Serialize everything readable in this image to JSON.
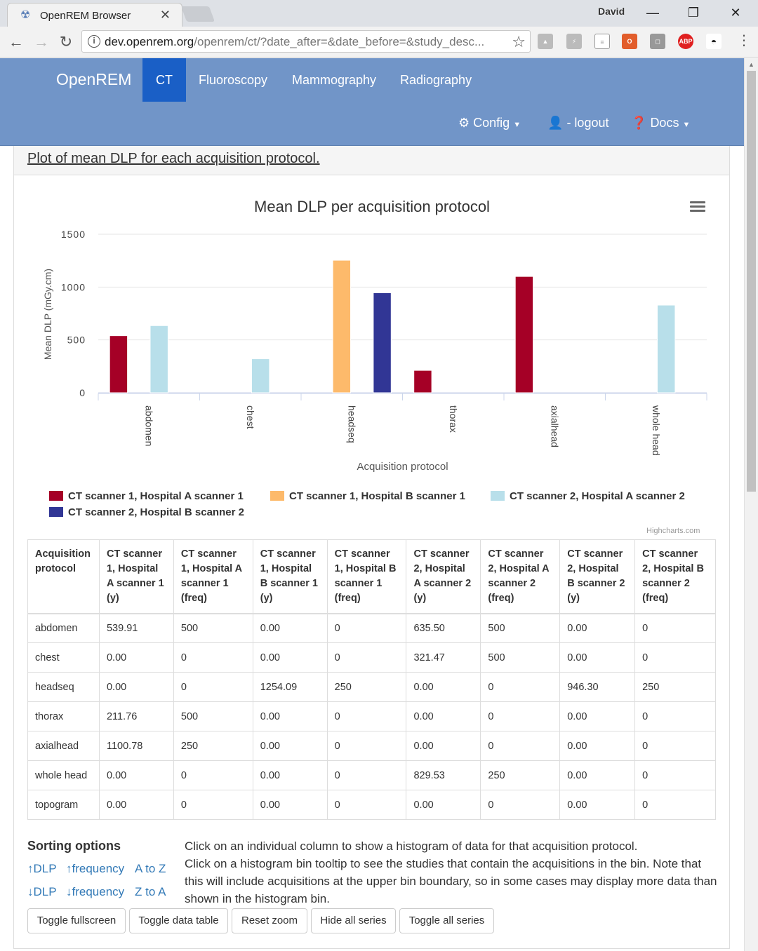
{
  "browser": {
    "tab_title": "OpenREM Browser",
    "profile": "David",
    "url_host": "dev.openrem.org",
    "url_path": "/openrem/ct/?date_after=&date_before=&study_desc...",
    "extensions": [
      "drive-icon",
      "pdf-icon",
      "doc-icon",
      "office-icon",
      "box-icon",
      "adblock-icon",
      "spy-icon"
    ],
    "adblock_label": "ABP"
  },
  "nav": {
    "brand": "OpenREM",
    "items": [
      {
        "label": "CT",
        "active": true
      },
      {
        "label": "Fluoroscopy",
        "active": false
      },
      {
        "label": "Mammography",
        "active": false
      },
      {
        "label": "Radiography",
        "active": false
      }
    ],
    "config": "Config",
    "logout": "- logout",
    "docs": "Docs"
  },
  "panel": {
    "heading": "Plot of mean DLP for each acquisition protocol."
  },
  "chart_data": {
    "type": "bar",
    "title": "Mean DLP per acquisition protocol",
    "xlabel": "Acquisition protocol",
    "ylabel": "Mean DLP (mGy.cm)",
    "ylim": [
      0,
      1500
    ],
    "yticks": [
      0,
      500,
      1000,
      1500
    ],
    "categories": [
      "abdomen",
      "chest",
      "headseq",
      "thorax",
      "axialhead",
      "whole head"
    ],
    "grid": true,
    "legend_position": "bottom",
    "series": [
      {
        "name": "CT scanner 1, Hospital A scanner 1",
        "color": "#a50026",
        "values": [
          539.91,
          0,
          0,
          211.76,
          1100.78,
          0
        ]
      },
      {
        "name": "CT scanner 1, Hospital B scanner 1",
        "color": "#fdba6b",
        "values": [
          0,
          0,
          1254.09,
          0,
          0,
          0
        ]
      },
      {
        "name": "CT scanner 2, Hospital A scanner 2",
        "color": "#b8dfea",
        "values": [
          635.5,
          321.47,
          0,
          0,
          0,
          829.53
        ]
      },
      {
        "name": "CT scanner 2, Hospital B scanner 2",
        "color": "#313695",
        "values": [
          0,
          0,
          946.3,
          0,
          0,
          0
        ]
      }
    ],
    "credits": "Highcharts.com"
  },
  "table": {
    "headers": [
      "Acquisition protocol",
      "CT scanner 1, Hospital A scanner 1 (y)",
      "CT scanner 1, Hospital A scanner 1 (freq)",
      "CT scanner 1, Hospital B scanner 1 (y)",
      "CT scanner 1, Hospital B scanner 1 (freq)",
      "CT scanner 2, Hospital A scanner 2 (y)",
      "CT scanner 2, Hospital A scanner 2 (freq)",
      "CT scanner 2, Hospital B scanner 2 (y)",
      "CT scanner 2, Hospital B scanner 2 (freq)"
    ],
    "rows": [
      [
        "abdomen",
        "539.91",
        "500",
        "0.00",
        "0",
        "635.50",
        "500",
        "0.00",
        "0"
      ],
      [
        "chest",
        "0.00",
        "0",
        "0.00",
        "0",
        "321.47",
        "500",
        "0.00",
        "0"
      ],
      [
        "headseq",
        "0.00",
        "0",
        "1254.09",
        "250",
        "0.00",
        "0",
        "946.30",
        "250"
      ],
      [
        "thorax",
        "211.76",
        "500",
        "0.00",
        "0",
        "0.00",
        "0",
        "0.00",
        "0"
      ],
      [
        "axialhead",
        "1100.78",
        "250",
        "0.00",
        "0",
        "0.00",
        "0",
        "0.00",
        "0"
      ],
      [
        "whole head",
        "0.00",
        "0",
        "0.00",
        "0",
        "829.53",
        "250",
        "0.00",
        "0"
      ],
      [
        "topogram",
        "0.00",
        "0",
        "0.00",
        "0",
        "0.00",
        "0",
        "0.00",
        "0"
      ]
    ]
  },
  "sorting": {
    "title": "Sorting options",
    "dlp_asc": "↑DLP",
    "freq_asc": "↑frequency",
    "a_to_z": "A to Z",
    "dlp_desc": "↓DLP",
    "freq_desc": "↓frequency",
    "z_to_a": "Z to A"
  },
  "help": {
    "line1": "Click on an individual column to show a histogram of data for that acquisition protocol.",
    "line2": "Click on a histogram bin tooltip to see the studies that contain the acquisitions in the bin. Note that this will include acquisitions at the upper bin boundary, so in some cases may display more data than shown in the histogram bin."
  },
  "buttons": {
    "fullscreen": "Toggle fullscreen",
    "data_table": "Toggle data table",
    "reset_zoom": "Reset zoom",
    "hide_all": "Hide all series",
    "toggle_all": "Toggle all series"
  }
}
